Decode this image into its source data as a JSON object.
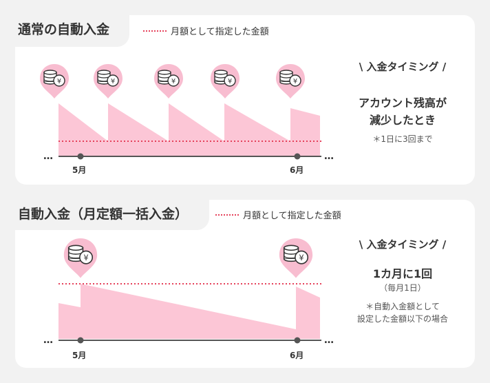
{
  "section1": {
    "title": "通常の自動入金",
    "legend": "月額として指定した金額",
    "timing_label": "\\ 入金タイミング /",
    "condition": [
      "アカウント残高が",
      "減少したとき"
    ],
    "note": "＊1日に3回まで",
    "month_labels": [
      "5月",
      "6月"
    ],
    "ellipsis": "…"
  },
  "section2": {
    "title": "自動入金（月定額一括入金）",
    "legend": "月額として指定した金額",
    "timing_label": "\\ 入金タイミング /",
    "condition": "1カ月に1回",
    "condition_sub": "（毎月1日）",
    "note": [
      "＊自動入金額として",
      "設定した金額以下の場合"
    ],
    "month_labels": [
      "5月",
      "6月"
    ],
    "ellipsis": "…"
  },
  "colors": {
    "pink_fill": "#fcc6d6",
    "pin": "#f8bdd0",
    "dotted_line": "#e5405a",
    "axis": "#555555",
    "card_bg": "#ffffff",
    "page_bg": "#f2f2f2"
  },
  "icons": [
    "coin-stack-icon",
    "yen-coin-icon",
    "location-pin-icon"
  ]
}
